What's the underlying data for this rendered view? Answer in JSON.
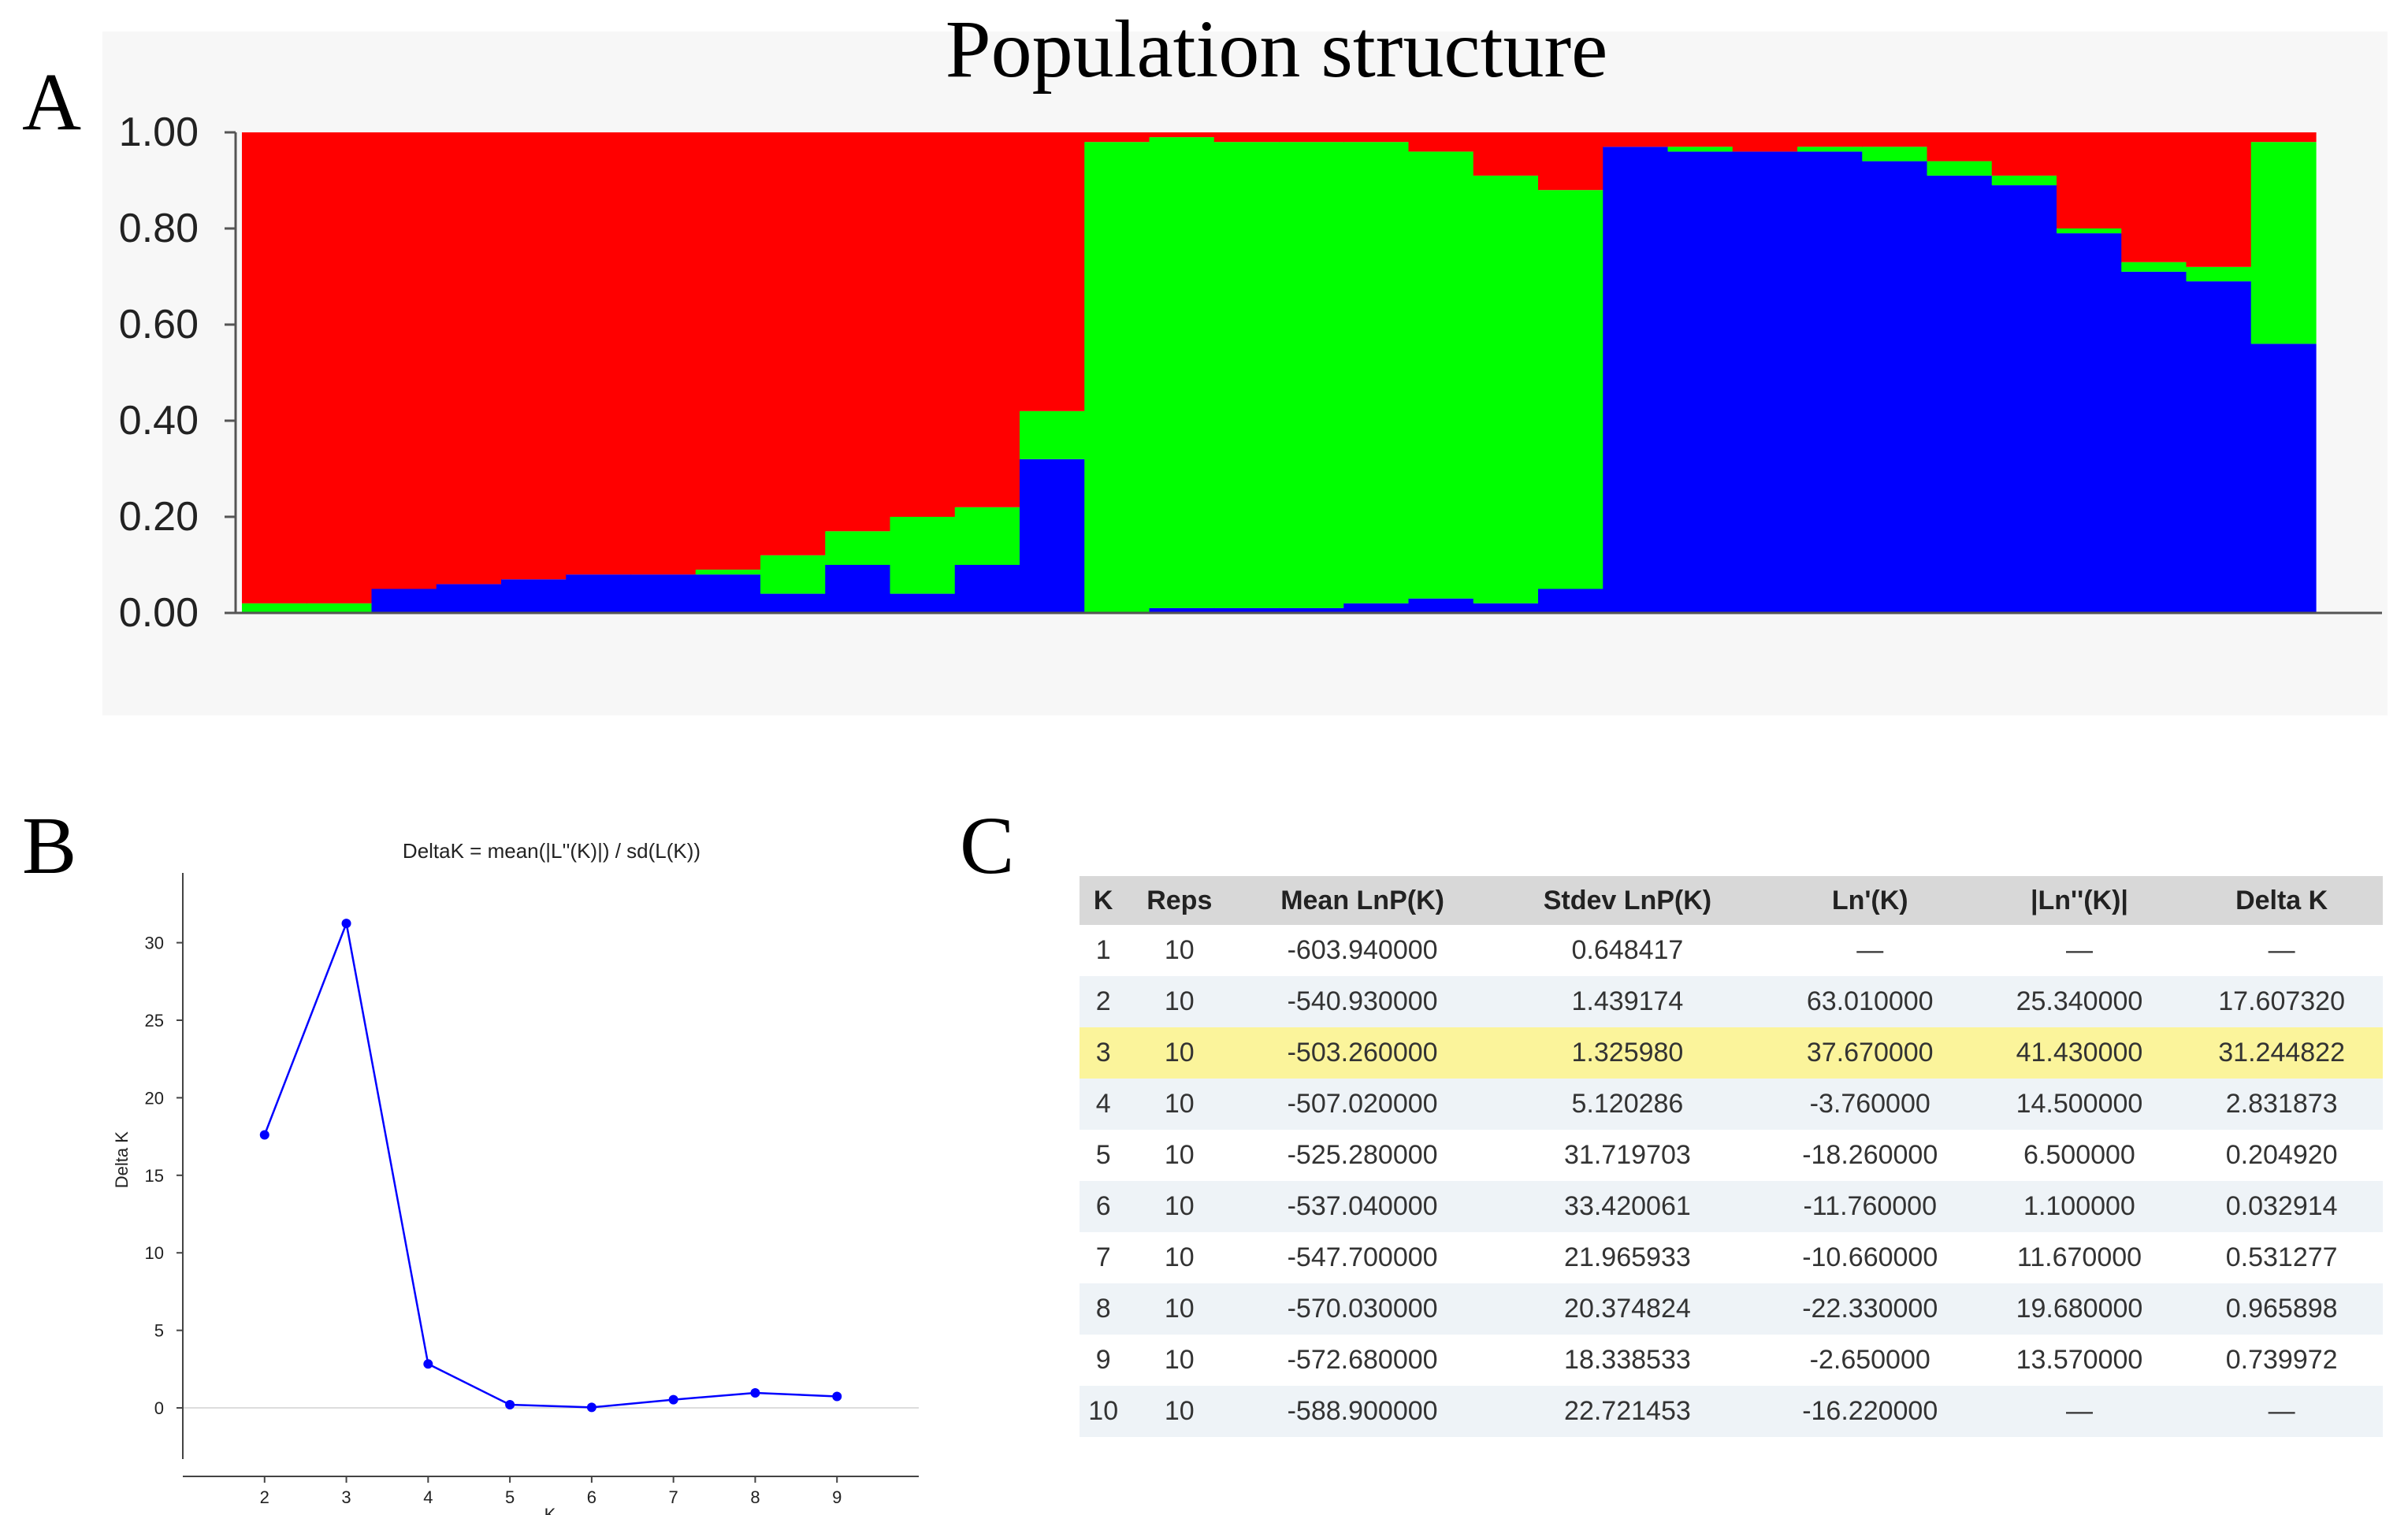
{
  "figure": {
    "title": "Population structure",
    "panel_labels": [
      "A",
      "B",
      "C"
    ]
  },
  "chart_data": [
    {
      "type": "stacked_bar",
      "panel": "A",
      "title": "Population structure",
      "yticks": [
        "0.00",
        "0.20",
        "0.40",
        "0.60",
        "0.80",
        "1.00"
      ],
      "ylim": [
        0,
        1
      ],
      "series_colors": {
        "blue": "#0000ff",
        "green": "#00ff00",
        "red": "#ff0000"
      },
      "individuals": [
        {
          "blue": 0.0,
          "green": 0.02,
          "red": 0.98
        },
        {
          "blue": 0.0,
          "green": 0.02,
          "red": 0.98
        },
        {
          "blue": 0.05,
          "green": 0.0,
          "red": 0.95
        },
        {
          "blue": 0.06,
          "green": 0.0,
          "red": 0.94
        },
        {
          "blue": 0.07,
          "green": 0.0,
          "red": 0.93
        },
        {
          "blue": 0.08,
          "green": 0.0,
          "red": 0.92
        },
        {
          "blue": 0.08,
          "green": 0.0,
          "red": 0.92
        },
        {
          "blue": 0.08,
          "green": 0.01,
          "red": 0.91
        },
        {
          "blue": 0.04,
          "green": 0.08,
          "red": 0.88
        },
        {
          "blue": 0.1,
          "green": 0.07,
          "red": 0.83
        },
        {
          "blue": 0.04,
          "green": 0.16,
          "red": 0.8
        },
        {
          "blue": 0.1,
          "green": 0.12,
          "red": 0.78
        },
        {
          "blue": 0.32,
          "green": 0.1,
          "red": 0.58
        },
        {
          "blue": 0.0,
          "green": 0.98,
          "red": 0.02
        },
        {
          "blue": 0.01,
          "green": 0.98,
          "red": 0.01
        },
        {
          "blue": 0.01,
          "green": 0.97,
          "red": 0.02
        },
        {
          "blue": 0.01,
          "green": 0.97,
          "red": 0.02
        },
        {
          "blue": 0.02,
          "green": 0.96,
          "red": 0.02
        },
        {
          "blue": 0.03,
          "green": 0.93,
          "red": 0.04
        },
        {
          "blue": 0.02,
          "green": 0.89,
          "red": 0.09
        },
        {
          "blue": 0.05,
          "green": 0.83,
          "red": 0.12
        },
        {
          "blue": 0.97,
          "green": 0.0,
          "red": 0.03
        },
        {
          "blue": 0.96,
          "green": 0.01,
          "red": 0.03
        },
        {
          "blue": 0.96,
          "green": 0.0,
          "red": 0.04
        },
        {
          "blue": 0.96,
          "green": 0.01,
          "red": 0.03
        },
        {
          "blue": 0.94,
          "green": 0.03,
          "red": 0.03
        },
        {
          "blue": 0.91,
          "green": 0.03,
          "red": 0.06
        },
        {
          "blue": 0.89,
          "green": 0.02,
          "red": 0.09
        },
        {
          "blue": 0.79,
          "green": 0.01,
          "red": 0.2
        },
        {
          "blue": 0.71,
          "green": 0.02,
          "red": 0.27
        },
        {
          "blue": 0.69,
          "green": 0.03,
          "red": 0.28
        },
        {
          "blue": 0.56,
          "green": 0.42,
          "red": 0.02
        }
      ]
    },
    {
      "type": "line",
      "panel": "B",
      "title": "DeltaK = mean(|L''(K)|) / sd(L(K))",
      "xlabel": "K",
      "ylabel": "Delta K",
      "x": [
        2,
        3,
        4,
        5,
        6,
        7,
        8,
        9
      ],
      "y": [
        17.60732,
        31.244822,
        2.831873,
        0.20492,
        0.032914,
        0.531277,
        0.965898,
        0.739972
      ],
      "xlim": [
        1,
        10
      ],
      "ylim": [
        -3.3,
        34.5
      ],
      "xticks": [
        "2",
        "3",
        "4",
        "5",
        "6",
        "7",
        "8",
        "9"
      ],
      "yticks": [
        "0",
        "5",
        "10",
        "15",
        "20",
        "25",
        "30"
      ],
      "color": "#0000ff"
    },
    {
      "type": "table",
      "panel": "C",
      "columns": [
        "K",
        "Reps",
        "Mean LnP(K)",
        "Stdev LnP(K)",
        "Ln'(K)",
        "|Ln''(K)|",
        "Delta K"
      ],
      "highlight_row": 2,
      "rows": [
        [
          "1",
          "10",
          "-603.940000",
          "0.648417",
          "—",
          "—",
          "—"
        ],
        [
          "2",
          "10",
          "-540.930000",
          "1.439174",
          "63.010000",
          "25.340000",
          "17.607320"
        ],
        [
          "3",
          "10",
          "-503.260000",
          "1.325980",
          "37.670000",
          "41.430000",
          "31.244822"
        ],
        [
          "4",
          "10",
          "-507.020000",
          "5.120286",
          "-3.760000",
          "14.500000",
          "2.831873"
        ],
        [
          "5",
          "10",
          "-525.280000",
          "31.719703",
          "-18.260000",
          "6.500000",
          "0.204920"
        ],
        [
          "6",
          "10",
          "-537.040000",
          "33.420061",
          "-11.760000",
          "1.100000",
          "0.032914"
        ],
        [
          "7",
          "10",
          "-547.700000",
          "21.965933",
          "-10.660000",
          "11.670000",
          "0.531277"
        ],
        [
          "8",
          "10",
          "-570.030000",
          "20.374824",
          "-22.330000",
          "19.680000",
          "0.965898"
        ],
        [
          "9",
          "10",
          "-572.680000",
          "18.338533",
          "-2.650000",
          "13.570000",
          "0.739972"
        ],
        [
          "10",
          "10",
          "-588.900000",
          "22.721453",
          "-16.220000",
          "—",
          "—"
        ]
      ],
      "highlight_color": "#fbf49b"
    }
  ]
}
